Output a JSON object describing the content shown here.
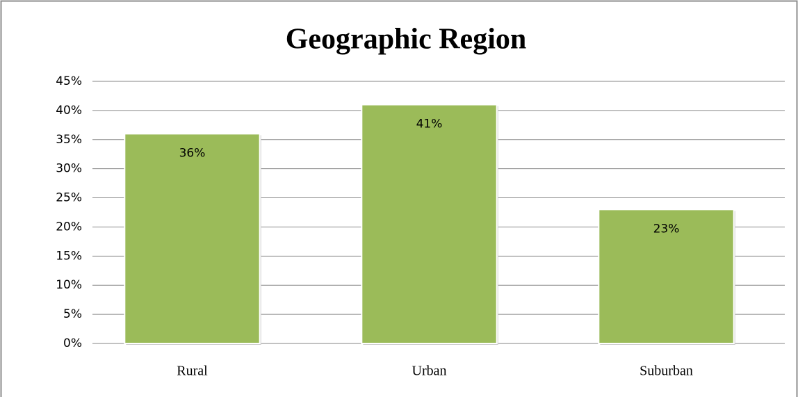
{
  "chart_data": {
    "type": "bar",
    "title": "Geographic Region",
    "categories": [
      "Rural",
      "Urban",
      "Suburban"
    ],
    "values": [
      36,
      41,
      23
    ],
    "value_labels": [
      "36%",
      "41%",
      "23%"
    ],
    "color": "#9bbb59",
    "ylim": [
      0,
      45
    ],
    "yticks": [
      {
        "value": 0,
        "label": "0%"
      },
      {
        "value": 5,
        "label": "5%"
      },
      {
        "value": 10,
        "label": "10%"
      },
      {
        "value": 15,
        "label": "15%"
      },
      {
        "value": 20,
        "label": "20%"
      },
      {
        "value": 25,
        "label": "25%"
      },
      {
        "value": 30,
        "label": "30%"
      },
      {
        "value": 35,
        "label": "35%"
      },
      {
        "value": 40,
        "label": "40%"
      },
      {
        "value": 45,
        "label": "45%"
      }
    ],
    "grid": true
  }
}
